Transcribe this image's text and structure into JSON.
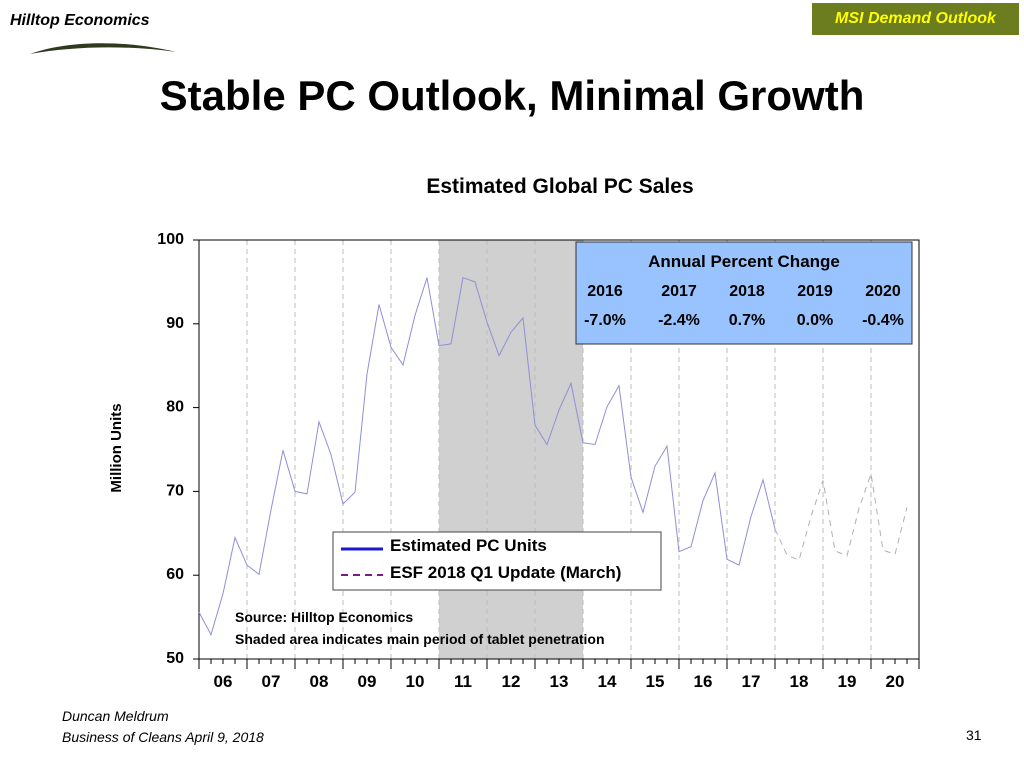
{
  "header": {
    "logo_text": "Hilltop Economics",
    "badge": "MSI Demand Outlook",
    "badge_bg": "#6b7d1e",
    "badge_fg": "#ffff00"
  },
  "page_title": "Stable PC Outlook, Minimal Growth",
  "chart_data": {
    "type": "line",
    "title": "Estimated Global PC Sales",
    "ylabel": "Million Units",
    "xlabel": "",
    "ylim": [
      50,
      100
    ],
    "yticks": [
      50,
      60,
      70,
      80,
      90,
      100
    ],
    "xlim": [
      2006,
      2021
    ],
    "xtick_labels": [
      "06",
      "07",
      "08",
      "09",
      "10",
      "11",
      "12",
      "13",
      "14",
      "15",
      "16",
      "17",
      "18",
      "19",
      "20"
    ],
    "grid": "vertical dashed at year boundaries",
    "shaded_region": [
      2011,
      2014
    ],
    "shaded_color": "#d0d0d0",
    "series": [
      {
        "name": "Estimated PC Units",
        "color": "#8f8fd8",
        "style": "solid",
        "x": [
          2006.0,
          2006.25,
          2006.5,
          2006.75,
          2007.0,
          2007.25,
          2007.5,
          2007.75,
          2008.0,
          2008.25,
          2008.5,
          2008.75,
          2009.0,
          2009.25,
          2009.5,
          2009.75,
          2010.0,
          2010.25,
          2010.5,
          2010.75,
          2011.0,
          2011.25,
          2011.5,
          2011.75,
          2012.0,
          2012.25,
          2012.5,
          2012.75,
          2013.0,
          2013.25,
          2013.5,
          2013.75,
          2014.0,
          2014.25,
          2014.5,
          2014.75,
          2015.0,
          2015.25,
          2015.5,
          2015.75,
          2016.0,
          2016.25,
          2016.5,
          2016.75,
          2017.0,
          2017.25,
          2017.5,
          2017.75,
          2018.0
        ],
        "values": [
          55.6,
          52.9,
          57.8,
          64.5,
          61.2,
          60.1,
          67.8,
          74.9,
          70.0,
          69.7,
          78.3,
          74.4,
          68.5,
          69.9,
          84.0,
          92.3,
          87.2,
          85.1,
          91.0,
          95.5,
          87.4,
          87.6,
          95.5,
          95.0,
          90.2,
          86.2,
          89.0,
          90.7,
          77.9,
          75.6,
          79.7,
          82.9,
          75.8,
          75.6,
          80.1,
          82.6,
          71.7,
          67.5,
          73.0,
          75.4,
          62.8,
          63.4,
          68.9,
          72.2,
          61.9,
          61.2,
          67.0,
          71.4,
          65.5
        ]
      },
      {
        "name": "ESF 2018 Q1 Update (March)",
        "color": "#b0b0b0",
        "style": "dashed",
        "x": [
          2018.0,
          2018.25,
          2018.5,
          2018.75,
          2019.0,
          2019.25,
          2019.5,
          2019.75,
          2020.0,
          2020.25,
          2020.5,
          2020.75
        ],
        "values": [
          65.5,
          62.4,
          61.8,
          67.0,
          71.3,
          62.9,
          62.3,
          68.0,
          72.1,
          63.0,
          62.5,
          68.1
        ]
      }
    ],
    "legend": {
      "placement": "bottom-center",
      "items": [
        {
          "label": "Estimated PC Units",
          "color": "#1a1acc",
          "style": "solid"
        },
        {
          "label": "ESF 2018 Q1 Update (March)",
          "color": "#7a1a8a",
          "style": "dashed"
        }
      ]
    },
    "notes": [
      "Source:  Hilltop Economics",
      "Shaded area indicates main period of tablet penetration"
    ],
    "annotation_box": {
      "title": "Annual Percent Change",
      "background": "#99c3ff",
      "years": [
        "2016",
        "2017",
        "2018",
        "2019",
        "2020"
      ],
      "changes": [
        "-7.0%",
        "-2.4%",
        "0.7%",
        "0.0%",
        "-0.4%"
      ]
    }
  },
  "footer": {
    "author": "Duncan Meldrum",
    "event": "Business of Cleans April 9, 2018",
    "page_number": "31"
  }
}
